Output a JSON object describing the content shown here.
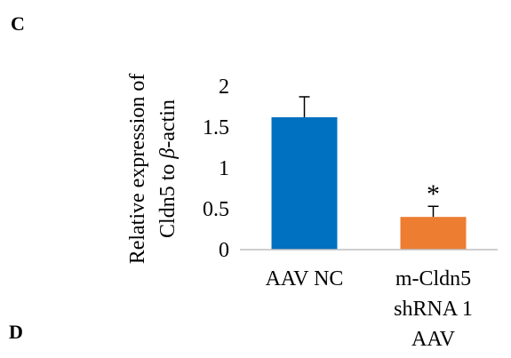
{
  "panels": {
    "top_letter": "C",
    "bottom_letter": "D"
  },
  "chart_data": {
    "type": "bar",
    "categories": [
      [
        "AAV NC"
      ],
      [
        "m-Cldn5",
        "shRNA 1",
        "AAV"
      ]
    ],
    "values": [
      1.62,
      0.4
    ],
    "errors": [
      0.25,
      0.13
    ],
    "colors": [
      "#0070C0",
      "#ED7D31"
    ],
    "ylim": [
      0,
      2
    ],
    "yticks": [
      "0",
      "0.5",
      "1",
      "1.5",
      "2"
    ],
    "ylabel_lines": [
      {
        "text": "Relative expression of"
      },
      {
        "pre": "Cldn5 to ",
        "italic": "β",
        "post": "-actin"
      }
    ],
    "annotations": [
      "",
      "*"
    ],
    "grid": false
  }
}
